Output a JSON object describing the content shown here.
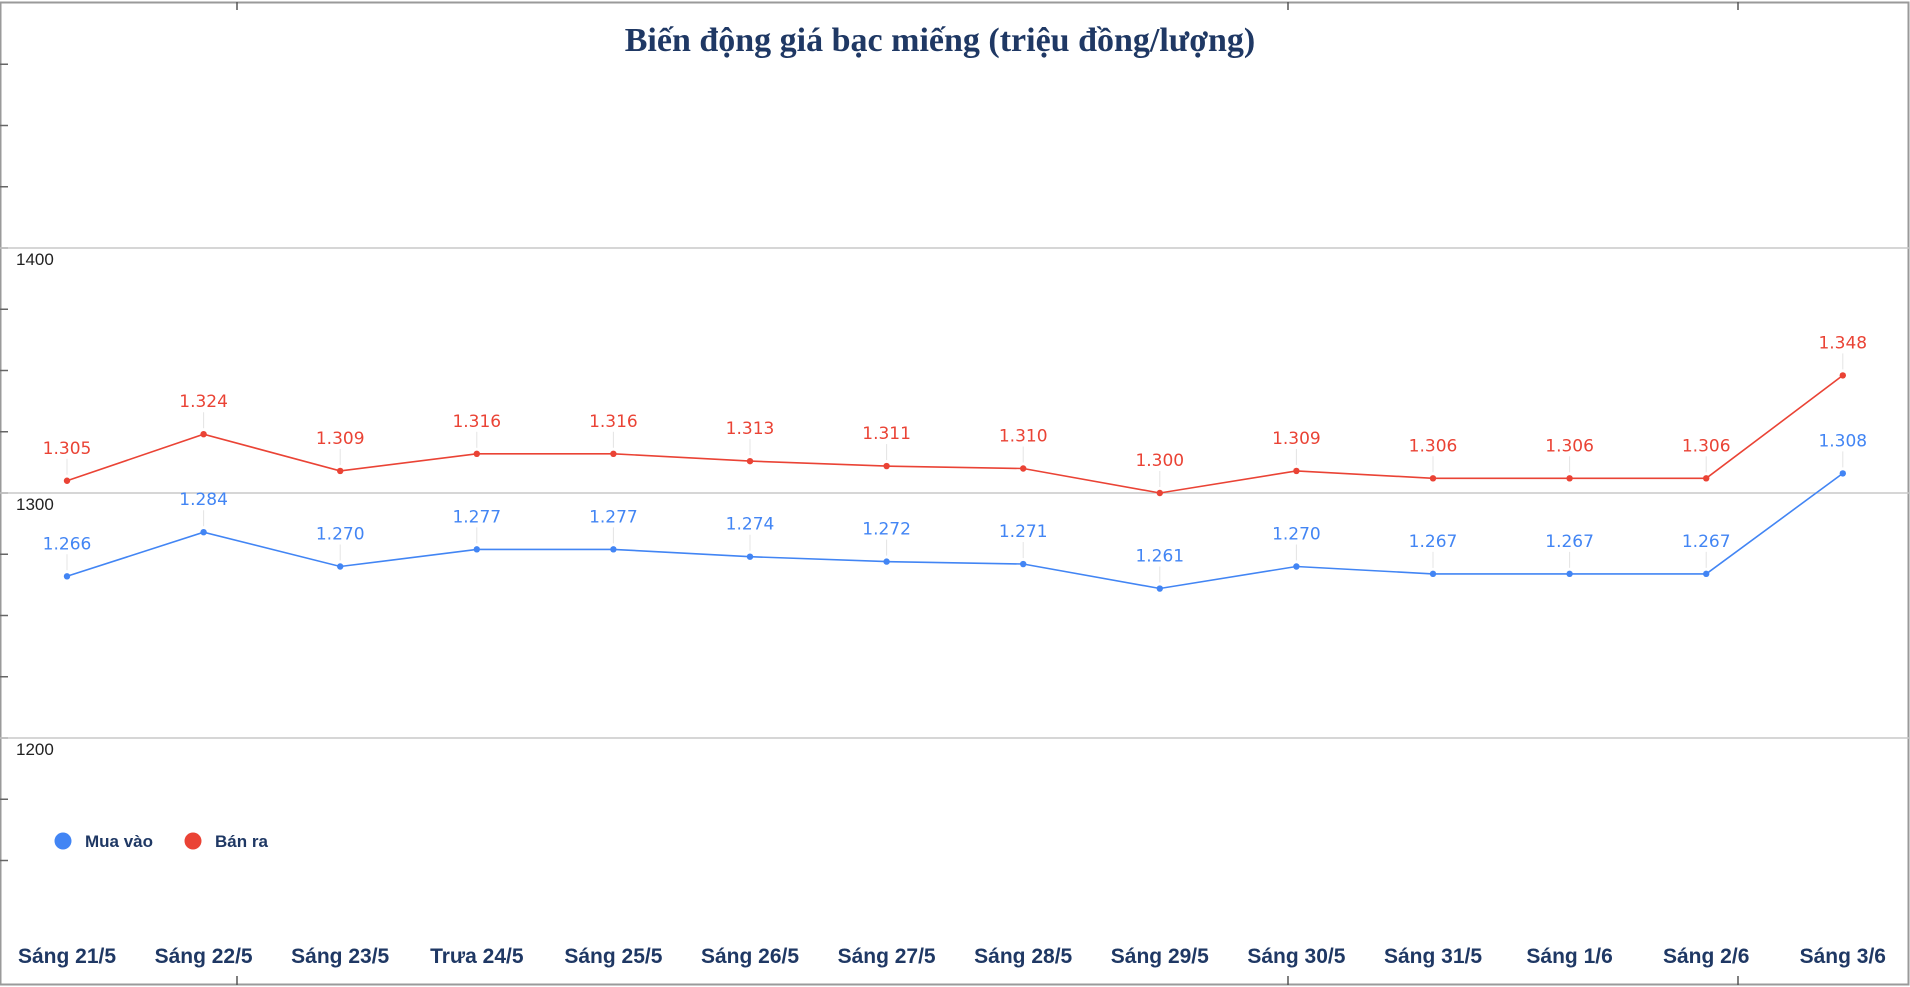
{
  "chart_data": {
    "type": "line",
    "title": "Biến động giá bạc miếng (triệu đồng/lượng)",
    "categories": [
      "Sáng 21/5",
      "Sáng 22/5",
      "Sáng 23/5",
      "Trưa 24/5",
      "Sáng 25/5",
      "Sáng 26/5",
      "Sáng 27/5",
      "Sáng 28/5",
      "Sáng 29/5",
      "Sáng 30/5",
      "Sáng 31/5",
      "Sáng 1/6",
      "Sáng 2/6",
      "Sáng 3/6"
    ],
    "series": [
      {
        "name": "Mua vào",
        "color": "#4285f4",
        "values": [
          1266,
          1284,
          1270,
          1277,
          1277,
          1274,
          1272,
          1271,
          1261,
          1270,
          1267,
          1267,
          1267,
          1308
        ],
        "labels": [
          "1.266",
          "1.284",
          "1.270",
          "1.277",
          "1.277",
          "1.274",
          "1.272",
          "1.271",
          "1.261",
          "1.270",
          "1.267",
          "1.267",
          "1.267",
          "1.308"
        ]
      },
      {
        "name": "Bán ra",
        "color": "#ea4335",
        "values": [
          1305,
          1324,
          1309,
          1316,
          1316,
          1313,
          1311,
          1310,
          1300,
          1309,
          1306,
          1306,
          1306,
          1348
        ],
        "labels": [
          "1.305",
          "1.324",
          "1.309",
          "1.316",
          "1.316",
          "1.313",
          "1.311",
          "1.310",
          "1.300",
          "1.309",
          "1.306",
          "1.306",
          "1.306",
          "1.348"
        ]
      }
    ],
    "yticks": [
      1200,
      1300,
      1400
    ],
    "ylim": [
      1135,
      1500
    ],
    "grid": true,
    "legend_position": "bottom-left"
  }
}
